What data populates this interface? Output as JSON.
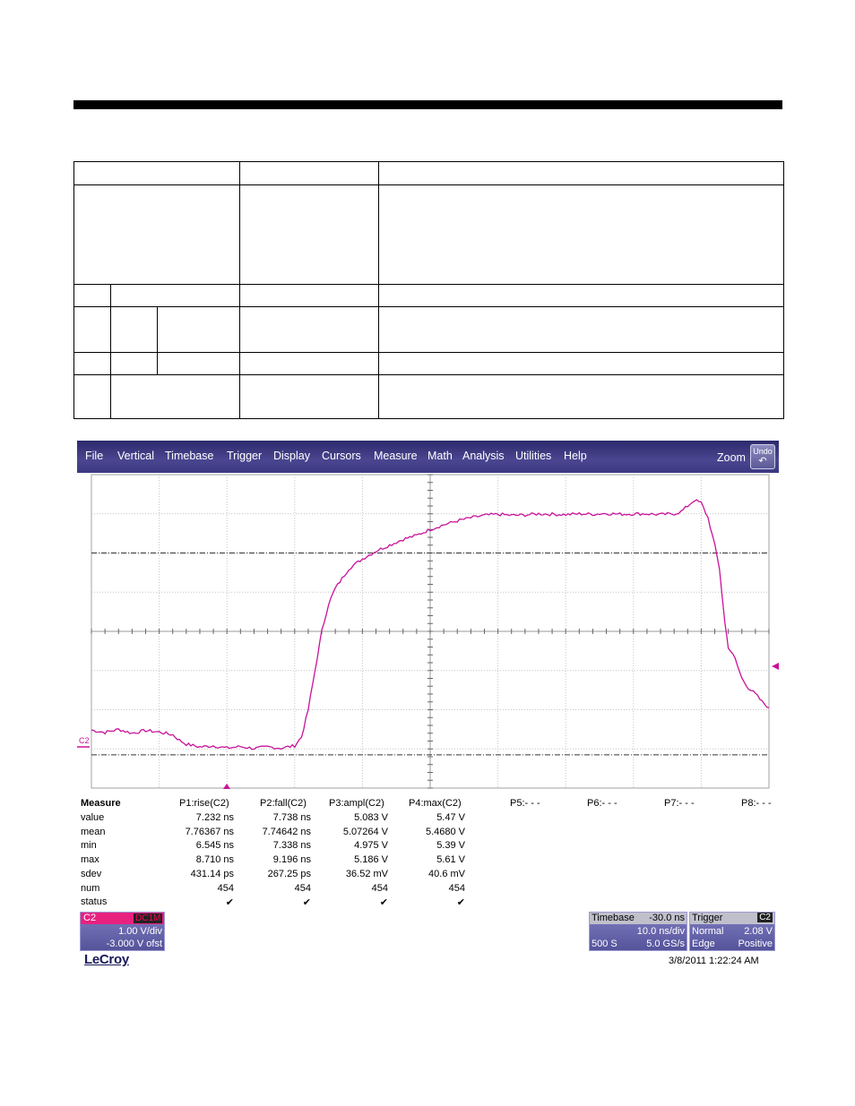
{
  "menu": {
    "items": [
      "File",
      "Vertical",
      "Timebase",
      "Trigger",
      "Display",
      "Cursors",
      "Measure",
      "Math",
      "Analysis",
      "Utilities",
      "Help"
    ],
    "zoom_label": "Zoom",
    "undo_label": "Undo"
  },
  "trace": {
    "color": "#c8129a",
    "channel_marker": "C2",
    "samples": [
      [
        0,
        1.48
      ],
      [
        2,
        1.42
      ],
      [
        4,
        1.5
      ],
      [
        6,
        1.4
      ],
      [
        8,
        1.47
      ],
      [
        10,
        1.43
      ],
      [
        12,
        1.36
      ],
      [
        13,
        1.22
      ],
      [
        14,
        1.12
      ],
      [
        16,
        1.05
      ],
      [
        18,
        1.08
      ],
      [
        20,
        1.02
      ],
      [
        22,
        1.06
      ],
      [
        24,
        1.01
      ],
      [
        26,
        1.05
      ],
      [
        28,
        1.02
      ],
      [
        30,
        1.08
      ],
      [
        31,
        1.3
      ],
      [
        32,
        2.0
      ],
      [
        33,
        3.0
      ],
      [
        34,
        4.0
      ],
      [
        35,
        4.7
      ],
      [
        36,
        5.1
      ],
      [
        37,
        5.35
      ],
      [
        38,
        5.6
      ],
      [
        40,
        5.85
      ],
      [
        42,
        6.05
      ],
      [
        44,
        6.2
      ],
      [
        46,
        6.35
      ],
      [
        48,
        6.45
      ],
      [
        50,
        6.6
      ],
      [
        52,
        6.72
      ],
      [
        54,
        6.82
      ],
      [
        56,
        6.9
      ],
      [
        58,
        6.96
      ],
      [
        60,
        6.99
      ],
      [
        62,
        6.96
      ],
      [
        64,
        6.97
      ],
      [
        66,
        7.0
      ],
      [
        68,
        6.99
      ],
      [
        70,
        6.98
      ],
      [
        72,
        7.0
      ],
      [
        74,
        6.99
      ],
      [
        76,
        7.01
      ],
      [
        78,
        6.99
      ],
      [
        80,
        7.0
      ],
      [
        82,
        7.0
      ],
      [
        84,
        6.98
      ],
      [
        86,
        7.0
      ],
      [
        87,
        7.05
      ],
      [
        88,
        7.2
      ],
      [
        89,
        7.35
      ],
      [
        90,
        7.28
      ],
      [
        91,
        6.9
      ],
      [
        92,
        6.2
      ],
      [
        92.7,
        5.6
      ],
      [
        93.5,
        4.2
      ],
      [
        94,
        3.6
      ],
      [
        95,
        3.3
      ],
      [
        96,
        2.8
      ],
      [
        97,
        2.55
      ],
      [
        98,
        2.4
      ],
      [
        99,
        2.2
      ],
      [
        100,
        2.05
      ]
    ]
  },
  "measure": {
    "header": "Measure",
    "params": [
      "P1:rise(C2)",
      "P2:fall(C2)",
      "P3:ampl(C2)",
      "P4:max(C2)",
      "P5:- - -",
      "P6:- - -",
      "P7:- - -",
      "P8:- - -"
    ],
    "row_labels": [
      "value",
      "mean",
      "min",
      "max",
      "sdev",
      "num",
      "status"
    ],
    "rows": [
      [
        "7.232 ns",
        "7.738 ns",
        "5.083 V",
        "5.47 V"
      ],
      [
        "7.76367 ns",
        "7.74642 ns",
        "5.07264 V",
        "5.4680 V"
      ],
      [
        "6.545 ns",
        "7.338 ns",
        "4.975 V",
        "5.39 V"
      ],
      [
        "8.710 ns",
        "9.196 ns",
        "5.186 V",
        "5.61 V"
      ],
      [
        "431.14 ps",
        "267.25 ps",
        "36.52 mV",
        "40.6 mV"
      ],
      [
        "454",
        "454",
        "454",
        "454"
      ]
    ],
    "status_symbol": "✔"
  },
  "channel": {
    "name": "C2",
    "coupling": "DC1M",
    "vdiv": "1.00 V/div",
    "offset": "-3.000 V ofst",
    "color": "#e8217f"
  },
  "timebase": {
    "label": "Timebase",
    "delay": "-30.0 ns",
    "tdiv": "10.0 ns/div",
    "samples": "500 S",
    "rate": "5.0 GS/s"
  },
  "trigger": {
    "label": "Trigger",
    "source": "C2",
    "mode": "Normal",
    "level": "2.08 V",
    "type": "Edge",
    "slope": "Positive"
  },
  "footer": {
    "brand": "LeCroy",
    "datetime": "3/8/2011 1:22:24 AM"
  }
}
